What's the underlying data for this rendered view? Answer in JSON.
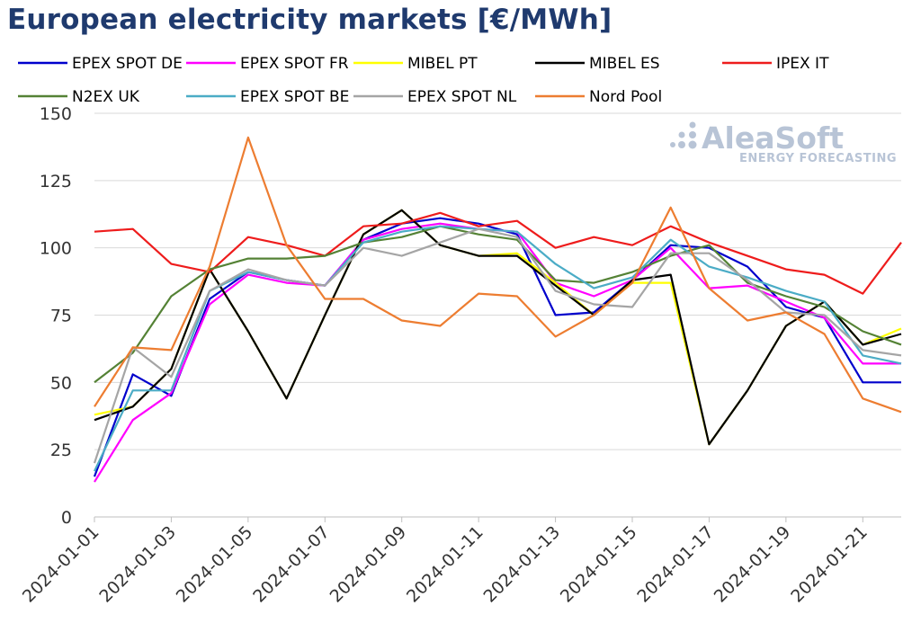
{
  "chart_data": {
    "type": "line",
    "title": "European electricity markets [€/MWh]",
    "ylim": [
      0,
      150
    ],
    "yticks": [
      0,
      25,
      50,
      75,
      100,
      125,
      150
    ],
    "xtick_labels": [
      "2024-01-01",
      "2024-01-03",
      "2024-01-05",
      "2024-01-07",
      "2024-01-09",
      "2024-01-11",
      "2024-01-13",
      "2024-01-15",
      "2024-01-17",
      "2024-01-19",
      "2024-01-21"
    ],
    "x": [
      "2024-01-01",
      "2024-01-02",
      "2024-01-03",
      "2024-01-04",
      "2024-01-05",
      "2024-01-06",
      "2024-01-07",
      "2024-01-08",
      "2024-01-09",
      "2024-01-10",
      "2024-01-11",
      "2024-01-12",
      "2024-01-13",
      "2024-01-14",
      "2024-01-15",
      "2024-01-16",
      "2024-01-17",
      "2024-01-18",
      "2024-01-19",
      "2024-01-20",
      "2024-01-21",
      "2024-01-22"
    ],
    "grid": "horizontal",
    "legend_position": "top",
    "series": [
      {
        "name": "EPEX SPOT DE",
        "color": "#0000cc",
        "values": [
          15,
          53,
          45,
          81,
          91,
          88,
          86,
          103,
          109,
          111,
          109,
          105,
          75,
          76,
          88,
          101,
          100,
          93,
          78,
          74,
          50,
          50
        ]
      },
      {
        "name": "EPEX SPOT FR",
        "color": "#ff00ff",
        "values": [
          13,
          36,
          46,
          79,
          90,
          87,
          86,
          103,
          107,
          109,
          107,
          106,
          87,
          82,
          88,
          100,
          85,
          86,
          80,
          74,
          57,
          57
        ]
      },
      {
        "name": "MIBEL PT",
        "color": "#ffff00",
        "values": [
          38,
          41,
          55,
          92,
          69,
          44,
          75,
          105,
          114,
          101,
          97,
          98,
          87,
          75,
          87,
          87,
          27,
          47,
          71,
          80,
          64,
          70
        ]
      },
      {
        "name": "MIBEL ES",
        "color": "#000000",
        "values": [
          36,
          41,
          55,
          92,
          69,
          44,
          75,
          105,
          114,
          101,
          97,
          97,
          86,
          75,
          88,
          90,
          27,
          47,
          71,
          80,
          64,
          68
        ]
      },
      {
        "name": "IPEX IT",
        "color": "#ee1c1c",
        "values": [
          106,
          107,
          94,
          91,
          104,
          101,
          97,
          108,
          109,
          113,
          108,
          110,
          100,
          104,
          101,
          108,
          102,
          97,
          92,
          90,
          83,
          102
        ]
      },
      {
        "name": "N2EX UK",
        "color": "#548235",
        "values": [
          50,
          61,
          82,
          92,
          96,
          96,
          97,
          102,
          104,
          108,
          105,
          103,
          88,
          87,
          91,
          97,
          101,
          87,
          82,
          78,
          69,
          64
        ]
      },
      {
        "name": "EPEX SPOT BE",
        "color": "#4bacc6",
        "values": [
          17,
          47,
          47,
          84,
          91,
          88,
          86,
          102,
          106,
          108,
          107,
          106,
          94,
          85,
          89,
          103,
          93,
          89,
          84,
          80,
          60,
          57
        ]
      },
      {
        "name": "EPEX SPOT NL",
        "color": "#a5a5a5",
        "values": [
          20,
          63,
          52,
          84,
          92,
          88,
          86,
          100,
          97,
          102,
          107,
          104,
          84,
          79,
          78,
          98,
          98,
          88,
          76,
          75,
          62,
          60
        ]
      },
      {
        "name": "Nord Pool",
        "color": "#ed7d31",
        "values": [
          41,
          63,
          62,
          93,
          141,
          101,
          81,
          81,
          73,
          71,
          83,
          82,
          67,
          75,
          87,
          115,
          85,
          73,
          76,
          68,
          44,
          39
        ]
      }
    ]
  },
  "logo": {
    "name": "AleaSoft",
    "tagline": "ENERGY FORECASTING"
  }
}
